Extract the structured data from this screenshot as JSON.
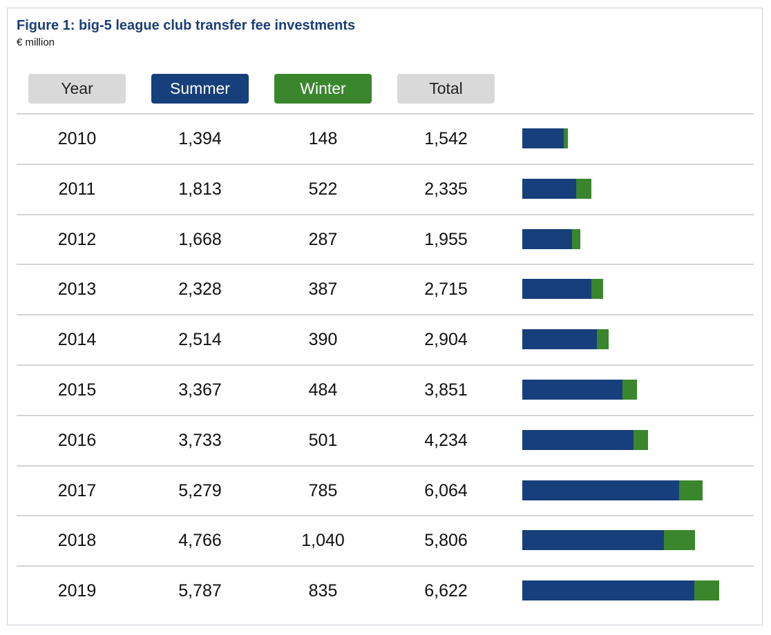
{
  "title": "Figure 1: big-5 league club transfer fee investments",
  "subtitle": "€ million",
  "headers": {
    "year": "Year",
    "summer": "Summer",
    "winter": "Winter",
    "total": "Total"
  },
  "colors": {
    "summer": "#163f7b",
    "winter": "#3a862d",
    "header_grey": "#d9d9d9"
  },
  "rows": [
    {
      "year": "2010",
      "summer": "1,394",
      "winter": "148",
      "total": "1,542"
    },
    {
      "year": "2011",
      "summer": "1,813",
      "winter": "522",
      "total": "2,335"
    },
    {
      "year": "2012",
      "summer": "1,668",
      "winter": "287",
      "total": "1,955"
    },
    {
      "year": "2013",
      "summer": "2,328",
      "winter": "387",
      "total": "2,715"
    },
    {
      "year": "2014",
      "summer": "2,514",
      "winter": "390",
      "total": "2,904"
    },
    {
      "year": "2015",
      "summer": "3,367",
      "winter": "484",
      "total": "3,851"
    },
    {
      "year": "2016",
      "summer": "3,733",
      "winter": "501",
      "total": "4,234"
    },
    {
      "year": "2017",
      "summer": "5,279",
      "winter": "785",
      "total": "6,064"
    },
    {
      "year": "2018",
      "summer": "4,766",
      "winter": "1,040",
      "total": "5,806"
    },
    {
      "year": "2019",
      "summer": "5,787",
      "winter": "835",
      "total": "6,622"
    }
  ],
  "chart_data": {
    "type": "bar",
    "orientation": "horizontal",
    "stacked": true,
    "categories": [
      "2010",
      "2011",
      "2012",
      "2013",
      "2014",
      "2015",
      "2016",
      "2017",
      "2018",
      "2019"
    ],
    "series": [
      {
        "name": "Summer",
        "values": [
          1394,
          1813,
          1668,
          2328,
          2514,
          3367,
          3733,
          5279,
          4766,
          5787
        ]
      },
      {
        "name": "Winter",
        "values": [
          148,
          522,
          287,
          387,
          390,
          484,
          501,
          785,
          1040,
          835
        ]
      }
    ],
    "totals": [
      1542,
      2335,
      1955,
      2715,
      2904,
      3851,
      4234,
      6064,
      5806,
      6622
    ],
    "title": "Figure 1: big-5 league club transfer fee investments",
    "unit": "€ million",
    "grid": false
  }
}
